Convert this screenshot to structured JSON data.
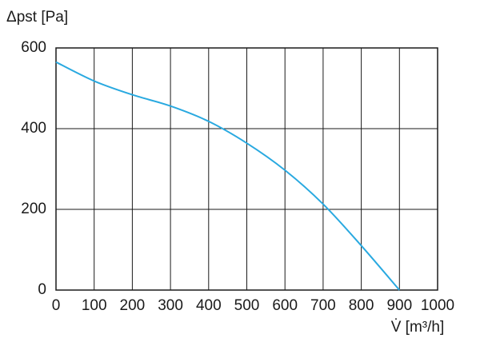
{
  "chart_data": {
    "type": "line",
    "ylabel": "Δpst [Pa]",
    "xlabel": "V̇ [m³/h]",
    "x": [
      0,
      100,
      200,
      300,
      400,
      500,
      600,
      700,
      800,
      900
    ],
    "series": [
      {
        "color": "#29a9e0",
        "values": [
          565,
          518,
          484,
          456,
          418,
          364,
          297,
          213,
          110,
          0
        ]
      }
    ],
    "xlim": [
      0,
      1000
    ],
    "xticks": [
      0,
      100,
      200,
      300,
      400,
      500,
      600,
      700,
      800,
      900,
      1000
    ],
    "ylim": [
      0,
      600
    ],
    "yticks": [
      0,
      200,
      400,
      600
    ],
    "grid": true
  }
}
